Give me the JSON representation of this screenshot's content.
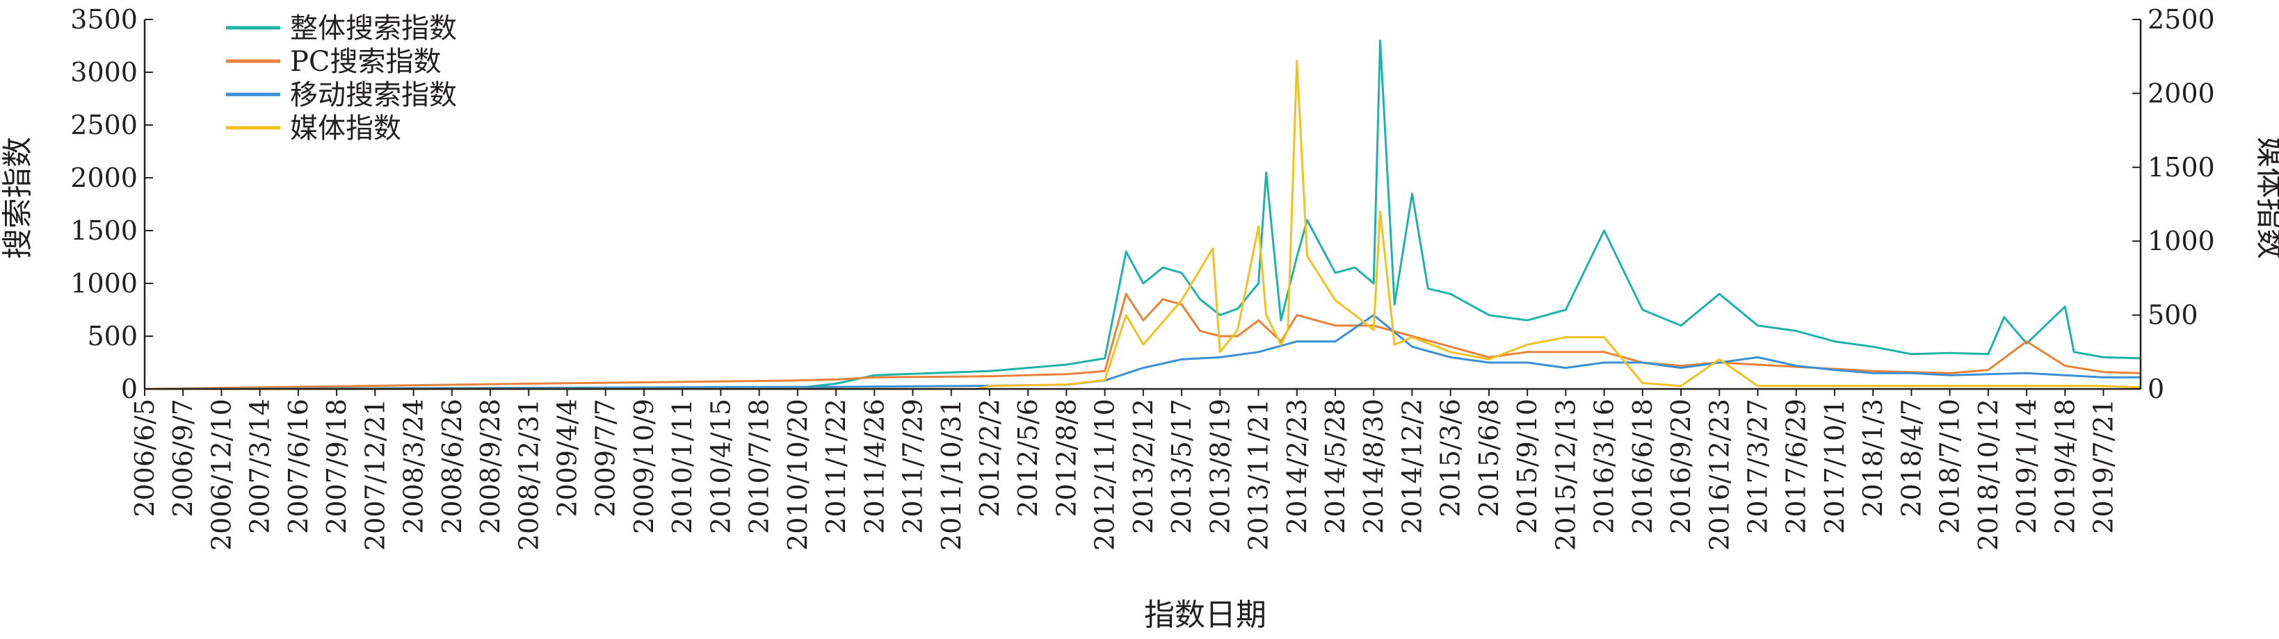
{
  "chart_data": {
    "type": "line",
    "xlabel": "指数日期",
    "ylabel_left": "搜索指数",
    "ylabel_right": "媒体指数",
    "ylim_left": [
      0,
      3500
    ],
    "ylim_right": [
      0,
      2500
    ],
    "yticks_left": [
      "0",
      "500",
      "1000",
      "1500",
      "2000",
      "2500",
      "3000",
      "3500"
    ],
    "yticks_right": [
      "0",
      "500",
      "1000",
      "1500",
      "2000",
      "2500"
    ],
    "x_start": "2006/6/5",
    "x_end": "2019/10/20",
    "x_tick_labels": [
      "2006/6/5",
      "2006/9/7",
      "2006/12/10",
      "2007/3/14",
      "2007/6/16",
      "2007/9/18",
      "2007/12/21",
      "2008/3/24",
      "2008/6/26",
      "2008/9/28",
      "2008/12/31",
      "2009/4/4",
      "2009/7/7",
      "2009/10/9",
      "2010/1/11",
      "2010/4/15",
      "2010/7/18",
      "2010/10/20",
      "2011/1/22",
      "2011/4/26",
      "2011/7/29",
      "2011/10/31",
      "2012/2/2",
      "2012/5/6",
      "2012/8/8",
      "2012/11/10",
      "2013/2/12",
      "2013/5/17",
      "2013/8/19",
      "2013/11/21",
      "2014/2/23",
      "2014/5/28",
      "2014/8/30",
      "2014/12/2",
      "2015/3/6",
      "2015/6/8",
      "2015/9/10",
      "2015/12/13",
      "2016/3/16",
      "2016/6/18",
      "2016/9/20",
      "2016/12/23",
      "2017/3/27",
      "2017/6/29",
      "2017/10/1",
      "2018/1/3",
      "2018/4/7",
      "2018/7/10",
      "2018/10/12",
      "2019/1/14",
      "2019/4/18",
      "2019/7/21"
    ],
    "legend_position": "top-left",
    "series": [
      {
        "name": "整体搜索指数",
        "axis": "left",
        "color": "#1fb2a8",
        "x": [
          "2006/6/5",
          "2008/12/31",
          "2010/10/20",
          "2011/1/22",
          "2011/4/26",
          "2012/2/2",
          "2012/8/8",
          "2012/11/10",
          "2013/1/1",
          "2013/2/12",
          "2013/4/1",
          "2013/5/17",
          "2013/7/1",
          "2013/8/19",
          "2013/10/1",
          "2013/11/21",
          "2013/12/10",
          "2014/1/15",
          "2014/2/23",
          "2014/3/20",
          "2014/5/28",
          "2014/7/15",
          "2014/8/30",
          "2014/9/15",
          "2014/10/20",
          "2014/12/2",
          "2015/1/10",
          "2015/3/6",
          "2015/6/8",
          "2015/9/10",
          "2015/12/13",
          "2016/3/16",
          "2016/6/18",
          "2016/9/20",
          "2016/12/23",
          "2017/3/27",
          "2017/6/29",
          "2017/10/1",
          "2018/1/3",
          "2018/4/7",
          "2018/7/10",
          "2018/10/12",
          "2018/11/20",
          "2019/1/14",
          "2019/4/18",
          "2019/5/10",
          "2019/7/21",
          "2019/10/20"
        ],
        "y": [
          0,
          0,
          10,
          50,
          130,
          170,
          230,
          290,
          1300,
          1000,
          1150,
          1100,
          850,
          700,
          760,
          1000,
          2050,
          650,
          1250,
          1600,
          1100,
          1150,
          1000,
          3300,
          800,
          1850,
          950,
          900,
          700,
          650,
          750,
          1500,
          750,
          600,
          900,
          600,
          550,
          450,
          400,
          330,
          340,
          330,
          680,
          430,
          780,
          350,
          300,
          290
        ]
      },
      {
        "name": "PC搜索指数",
        "axis": "left",
        "color": "#e8823a",
        "x": [
          "2006/6/5",
          "2008/12/31",
          "2010/10/20",
          "2011/1/22",
          "2011/4/26",
          "2012/2/2",
          "2012/8/8",
          "2012/11/10",
          "2013/1/1",
          "2013/2/12",
          "2013/4/1",
          "2013/5/17",
          "2013/7/1",
          "2013/8/19",
          "2013/10/1",
          "2013/11/21",
          "2014/1/15",
          "2014/2/23",
          "2014/5/28",
          "2014/8/30",
          "2014/12/2",
          "2015/3/6",
          "2015/6/8",
          "2015/9/10",
          "2015/12/13",
          "2016/3/16",
          "2016/6/18",
          "2016/9/20",
          "2016/12/23",
          "2017/3/27",
          "2017/6/29",
          "2017/10/1",
          "2018/1/3",
          "2018/4/7",
          "2018/7/10",
          "2018/10/12",
          "2019/1/14",
          "2019/4/18",
          "2019/7/21",
          "2019/10/20"
        ],
        "y": [
          0,
          50,
          80,
          90,
          110,
          120,
          140,
          170,
          900,
          650,
          850,
          800,
          550,
          500,
          500,
          650,
          450,
          700,
          600,
          600,
          500,
          400,
          300,
          350,
          350,
          350,
          250,
          220,
          250,
          230,
          210,
          190,
          170,
          160,
          150,
          180,
          450,
          220,
          160,
          150
        ]
      },
      {
        "name": "移动搜索指数",
        "axis": "left",
        "color": "#3b8fd4",
        "x": [
          "2006/6/5",
          "2011/1/22",
          "2012/2/2",
          "2012/8/8",
          "2012/11/10",
          "2013/2/12",
          "2013/5/17",
          "2013/8/19",
          "2013/11/21",
          "2014/2/23",
          "2014/5/28",
          "2014/8/30",
          "2014/12/2",
          "2015/3/6",
          "2015/6/8",
          "2015/9/10",
          "2015/12/13",
          "2016/3/16",
          "2016/6/18",
          "2016/9/20",
          "2016/12/23",
          "2017/3/27",
          "2017/6/29",
          "2017/10/1",
          "2018/1/3",
          "2018/4/7",
          "2018/7/10",
          "2018/10/12",
          "2019/1/14",
          "2019/4/18",
          "2019/7/21",
          "2019/10/20"
        ],
        "y": [
          0,
          20,
          30,
          40,
          80,
          200,
          280,
          300,
          350,
          450,
          450,
          700,
          400,
          300,
          250,
          250,
          200,
          250,
          250,
          200,
          250,
          300,
          220,
          180,
          150,
          150,
          130,
          140,
          150,
          130,
          110,
          110
        ]
      },
      {
        "name": "媒体指数",
        "axis": "right",
        "color": "#f2c01f",
        "x": [
          "2006/6/5",
          "2012/1/1",
          "2012/2/2",
          "2012/8/8",
          "2012/11/10",
          "2013/1/1",
          "2013/2/12",
          "2013/5/17",
          "2013/8/1",
          "2013/8/19",
          "2013/10/1",
          "2013/11/21",
          "2013/12/10",
          "2014/1/15",
          "2014/2/1",
          "2014/2/23",
          "2014/3/20",
          "2014/5/28",
          "2014/7/15",
          "2014/8/30",
          "2014/9/15",
          "2014/10/20",
          "2014/12/2",
          "2015/3/6",
          "2015/6/8",
          "2015/9/10",
          "2015/12/13",
          "2016/3/16",
          "2016/6/18",
          "2016/9/20",
          "2016/12/23",
          "2017/3/27",
          "2017/10/1",
          "2018/7/10",
          "2019/1/14",
          "2019/7/21",
          "2019/10/20"
        ],
        "y": [
          0,
          0,
          20,
          30,
          60,
          500,
          300,
          600,
          950,
          250,
          400,
          1100,
          500,
          300,
          400,
          2220,
          900,
          600,
          500,
          400,
          1200,
          300,
          350,
          250,
          200,
          300,
          350,
          350,
          40,
          20,
          200,
          20,
          20,
          20,
          20,
          20,
          10
        ]
      }
    ]
  }
}
